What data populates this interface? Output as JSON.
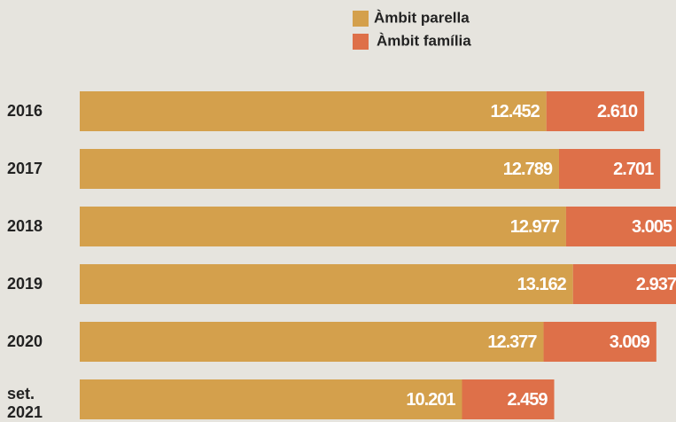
{
  "chart_data": {
    "type": "stacked-bar-horizontal",
    "categories": [
      "2016",
      "2017",
      "2018",
      "2019",
      "2020",
      "set. 2021"
    ],
    "series": [
      {
        "name": "Àmbit parella",
        "color": "#d4a04c",
        "values": [
          12452,
          12789,
          12977,
          13162,
          12377,
          10201
        ],
        "value_labels": [
          "12.452",
          "12.789",
          "12.977",
          "13.162",
          "12.377",
          "10.201"
        ]
      },
      {
        "name": "Àmbit família",
        "color": "#de7049",
        "values": [
          2610,
          2701,
          3005,
          2937,
          3009,
          2459
        ],
        "value_labels": [
          "2.610",
          "2.701",
          "3.005",
          "2.937",
          "3.009",
          "2.459"
        ]
      }
    ]
  }
}
